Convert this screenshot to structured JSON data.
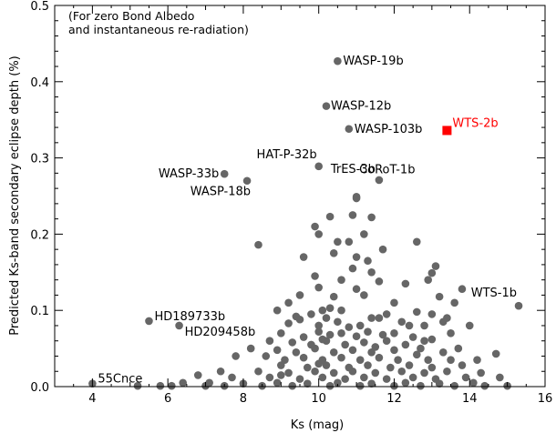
{
  "chart_data": {
    "type": "scatter",
    "xlabel": "Ks (mag)",
    "ylabel": "Predicted Ks-band secondary eclipse depth (%)",
    "xlim": [
      3,
      16
    ],
    "ylim": [
      0,
      0.5
    ],
    "x_ticks": [
      4,
      6,
      8,
      10,
      12,
      14,
      16
    ],
    "y_ticks": [
      0.0,
      0.1,
      0.2,
      0.3,
      0.4,
      0.5
    ],
    "y_tick_labels": [
      "0.0",
      "0.1",
      "0.2",
      "0.3",
      "0.4",
      "0.5"
    ],
    "grid": false,
    "annotation_lines": [
      "(For zero Bond Albedo",
      "and instantaneous re-radiation)"
    ],
    "colors": {
      "points": "#666666",
      "highlight": "#ff0000"
    },
    "labeled_points": [
      {
        "name": "WASP-19b",
        "x": 10.5,
        "y": 0.427
      },
      {
        "name": "WASP-12b",
        "x": 10.2,
        "y": 0.368
      },
      {
        "name": "WASP-103b",
        "x": 10.8,
        "y": 0.338
      },
      {
        "name": "HAT-P-32b",
        "x": 10.0,
        "y": 0.289
      },
      {
        "name": "WASP-33b",
        "x": 7.5,
        "y": 0.279
      },
      {
        "name": "TrES-3b",
        "x": 11.6,
        "y": 0.271
      },
      {
        "name": "WASP-18b",
        "x": 8.1,
        "y": 0.27
      },
      {
        "name": "CoRoT-1b",
        "x": 11.0,
        "y": 0.249
      },
      {
        "name": "HD189733b",
        "x": 5.5,
        "y": 0.086
      },
      {
        "name": "HD209458b",
        "x": 6.3,
        "y": 0.08
      },
      {
        "name": "WTS-1b",
        "x": 15.3,
        "y": 0.106
      },
      {
        "name": "55Cnce",
        "x": 4.0,
        "y": 0.004
      }
    ],
    "highlight_point": {
      "name": "WTS-2b",
      "x": 13.4,
      "y": 0.336
    },
    "points": [
      [
        11.0,
        0.247
      ],
      [
        10.9,
        0.225
      ],
      [
        11.4,
        0.222
      ],
      [
        10.3,
        0.223
      ],
      [
        9.9,
        0.21
      ],
      [
        10.0,
        0.2
      ],
      [
        10.5,
        0.19
      ],
      [
        11.2,
        0.2
      ],
      [
        8.4,
        0.186
      ],
      [
        11.7,
        0.18
      ],
      [
        10.8,
        0.19
      ],
      [
        9.6,
        0.17
      ],
      [
        10.4,
        0.175
      ],
      [
        11.0,
        0.17
      ],
      [
        12.6,
        0.19
      ],
      [
        11.3,
        0.165
      ],
      [
        13.1,
        0.158
      ],
      [
        10.9,
        0.155
      ],
      [
        11.4,
        0.15
      ],
      [
        13.0,
        0.149
      ],
      [
        9.9,
        0.145
      ],
      [
        10.6,
        0.14
      ],
      [
        11.6,
        0.138
      ],
      [
        12.3,
        0.135
      ],
      [
        12.9,
        0.14
      ],
      [
        10.0,
        0.13
      ],
      [
        11.0,
        0.128
      ],
      [
        13.8,
        0.128
      ],
      [
        9.5,
        0.12
      ],
      [
        10.4,
        0.118
      ],
      [
        10.1,
        0.1
      ],
      [
        11.2,
        0.12
      ],
      [
        12.0,
        0.11
      ],
      [
        13.2,
        0.118
      ],
      [
        13.6,
        0.11
      ],
      [
        8.9,
        0.1
      ],
      [
        9.2,
        0.11
      ],
      [
        9.8,
        0.095
      ],
      [
        10.2,
        0.09
      ],
      [
        10.6,
        0.1
      ],
      [
        11.6,
        0.09
      ],
      [
        12.2,
        0.085
      ],
      [
        9.2,
        0.083
      ],
      [
        9.5,
        0.088
      ],
      [
        10.0,
        0.08
      ],
      [
        10.5,
        0.085
      ],
      [
        10.8,
        0.078
      ],
      [
        11.1,
        0.08
      ],
      [
        11.4,
        0.09
      ],
      [
        12.4,
        0.08
      ],
      [
        13.0,
        0.095
      ],
      [
        12.8,
        0.08
      ],
      [
        13.3,
        0.085
      ],
      [
        14.0,
        0.08
      ],
      [
        9.0,
        0.07
      ],
      [
        9.6,
        0.065
      ],
      [
        10.0,
        0.072
      ],
      [
        10.3,
        0.068
      ],
      [
        10.6,
        0.07
      ],
      [
        11.0,
        0.066
      ],
      [
        11.3,
        0.072
      ],
      [
        11.7,
        0.068
      ],
      [
        12.0,
        0.07
      ],
      [
        12.5,
        0.065
      ],
      [
        13.5,
        0.07
      ],
      [
        8.7,
        0.06
      ],
      [
        9.3,
        0.058
      ],
      [
        9.8,
        0.055
      ],
      [
        10.2,
        0.06
      ],
      [
        10.7,
        0.055
      ],
      [
        11.2,
        0.058
      ],
      [
        11.8,
        0.06
      ],
      [
        12.3,
        0.055
      ],
      [
        12.7,
        0.05
      ],
      [
        13.0,
        0.062
      ],
      [
        13.7,
        0.05
      ],
      [
        8.2,
        0.05
      ],
      [
        8.9,
        0.048
      ],
      [
        9.4,
        0.045
      ],
      [
        9.9,
        0.05
      ],
      [
        10.4,
        0.045
      ],
      [
        10.9,
        0.048
      ],
      [
        11.4,
        0.045
      ],
      [
        12.0,
        0.048
      ],
      [
        12.6,
        0.042
      ],
      [
        13.3,
        0.045
      ],
      [
        14.7,
        0.043
      ],
      [
        7.8,
        0.04
      ],
      [
        8.6,
        0.04
      ],
      [
        9.1,
        0.035
      ],
      [
        9.6,
        0.038
      ],
      [
        10.1,
        0.035
      ],
      [
        10.6,
        0.038
      ],
      [
        11.1,
        0.035
      ],
      [
        11.6,
        0.038
      ],
      [
        12.1,
        0.035
      ],
      [
        12.9,
        0.035
      ],
      [
        13.5,
        0.035
      ],
      [
        14.2,
        0.035
      ],
      [
        9.0,
        0.028
      ],
      [
        9.7,
        0.025
      ],
      [
        10.2,
        0.028
      ],
      [
        10.8,
        0.025
      ],
      [
        11.3,
        0.028
      ],
      [
        11.9,
        0.025
      ],
      [
        12.4,
        0.028
      ],
      [
        13.0,
        0.025
      ],
      [
        13.8,
        0.028
      ],
      [
        7.4,
        0.02
      ],
      [
        8.4,
        0.02
      ],
      [
        9.2,
        0.018
      ],
      [
        9.9,
        0.02
      ],
      [
        10.4,
        0.018
      ],
      [
        10.9,
        0.02
      ],
      [
        11.5,
        0.018
      ],
      [
        12.2,
        0.02
      ],
      [
        12.8,
        0.018
      ],
      [
        13.4,
        0.02
      ],
      [
        14.3,
        0.018
      ],
      [
        6.8,
        0.015
      ],
      [
        7.7,
        0.012
      ],
      [
        8.7,
        0.012
      ],
      [
        9.5,
        0.01
      ],
      [
        10.1,
        0.012
      ],
      [
        10.7,
        0.01
      ],
      [
        11.2,
        0.012
      ],
      [
        11.8,
        0.01
      ],
      [
        12.5,
        0.012
      ],
      [
        13.1,
        0.01
      ],
      [
        13.9,
        0.012
      ],
      [
        14.8,
        0.012
      ],
      [
        6.4,
        0.005
      ],
      [
        7.1,
        0.005
      ],
      [
        8.0,
        0.004
      ],
      [
        8.9,
        0.005
      ],
      [
        9.7,
        0.004
      ],
      [
        10.5,
        0.005
      ],
      [
        11.4,
        0.004
      ],
      [
        12.3,
        0.005
      ],
      [
        13.2,
        0.004
      ],
      [
        14.1,
        0.005
      ],
      [
        5.2,
        0.001
      ],
      [
        5.8,
        0.001
      ],
      [
        6.1,
        0.001
      ],
      [
        7.0,
        0.001
      ],
      [
        7.5,
        0.001
      ],
      [
        8.5,
        0.001
      ],
      [
        9.3,
        0.001
      ],
      [
        10.3,
        0.001
      ],
      [
        11.1,
        0.001
      ],
      [
        12.0,
        0.001
      ],
      [
        12.7,
        0.001
      ],
      [
        13.6,
        0.001
      ],
      [
        14.4,
        0.001
      ],
      [
        15.0,
        0.001
      ],
      [
        9.4,
        0.092
      ],
      [
        10.3,
        0.103
      ],
      [
        11.8,
        0.095
      ],
      [
        12.6,
        0.098
      ],
      [
        13.4,
        0.09
      ],
      [
        10.1,
        0.062
      ],
      [
        11.5,
        0.052
      ],
      [
        12.8,
        0.06
      ],
      [
        9.0,
        0.015
      ],
      [
        10.0,
        0.03
      ]
    ]
  }
}
